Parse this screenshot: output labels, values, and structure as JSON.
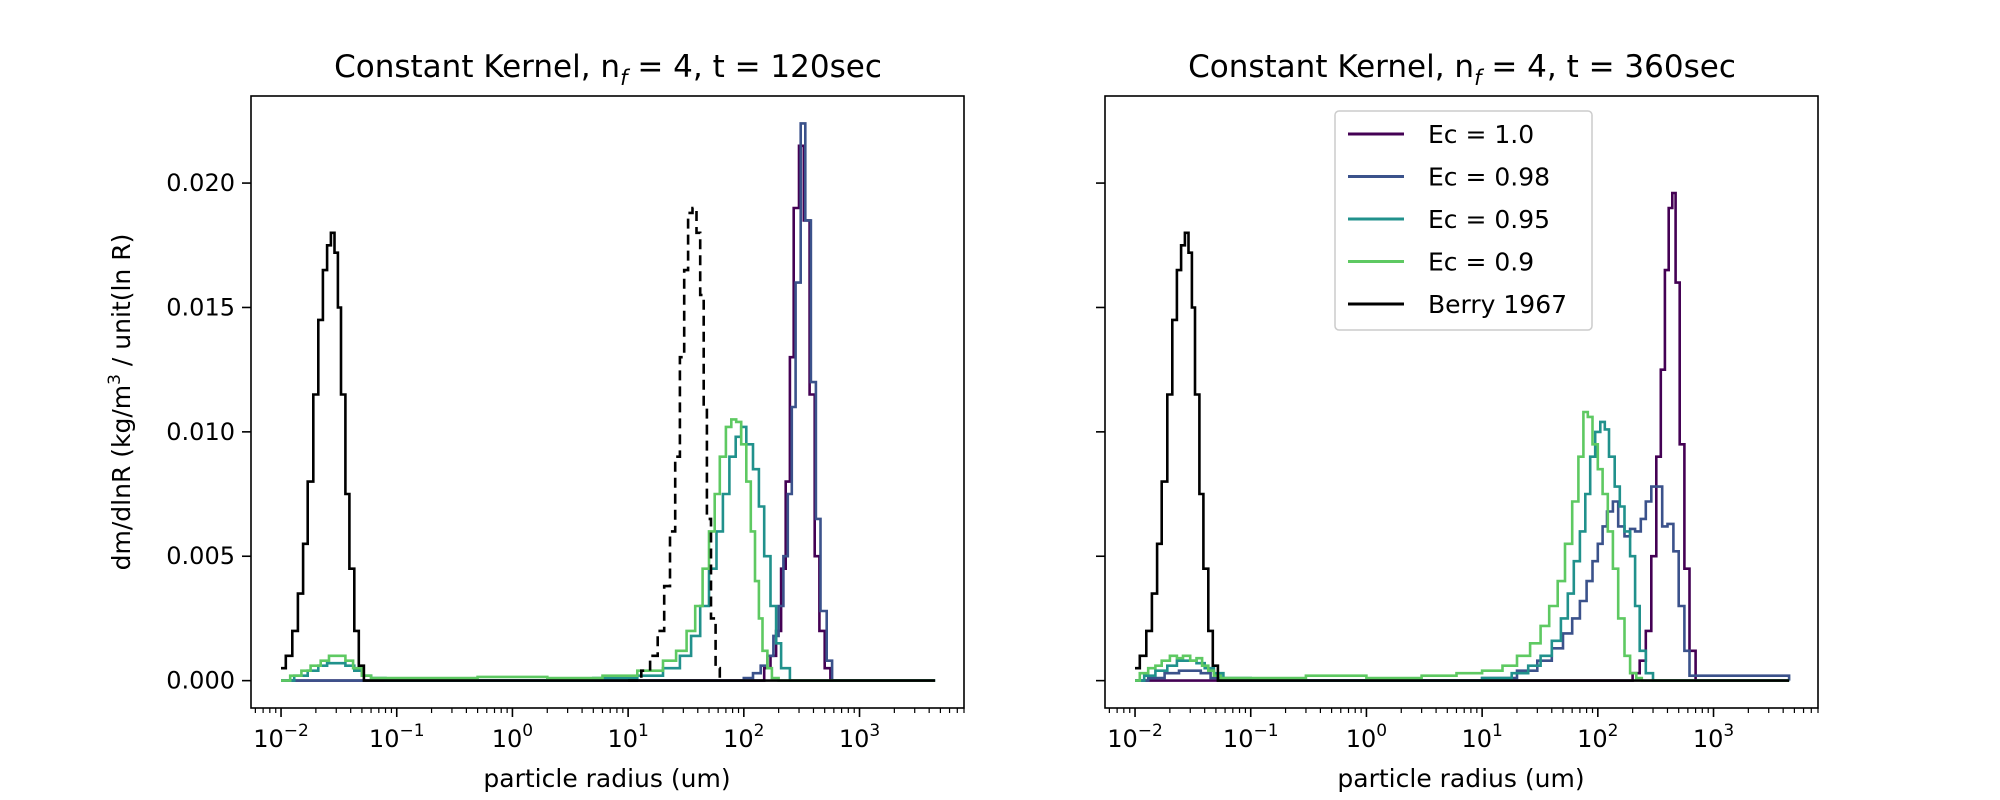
{
  "colors": {
    "ec_1.0": "#440154",
    "ec_0.98": "#3b528b",
    "ec_0.95": "#21918c",
    "ec_0.9": "#5ec962",
    "berry": "#000000"
  },
  "legend": {
    "placement": "upper-center",
    "entries": [
      "Ec = 1.0",
      "Ec = 0.98",
      "Ec = 0.95",
      "Ec = 0.9",
      "Berry 1967"
    ]
  },
  "chart_data": [
    {
      "type": "line",
      "style": "step",
      "title_main": "Constant Kernel, n",
      "title_sub": "f",
      "title_rest": " = 4, t = 120sec",
      "xlabel": "particle radius (um)",
      "ylabel_pre": "dm/dlnR (kg/m",
      "ylabel_sup": "3",
      "ylabel_post": " / unit(ln R)",
      "x_scale": "log",
      "xlim": [
        0.0055,
        8000
      ],
      "ylim": [
        -0.0011,
        0.0235
      ],
      "x_ticks": [
        0.01,
        0.1,
        1,
        10,
        100,
        1000
      ],
      "x_tick_exponents": [
        "−2",
        "−1",
        "0",
        "1",
        "2",
        "3"
      ],
      "y_ticks": [
        0.0,
        0.005,
        0.01,
        0.015,
        0.02
      ],
      "y_tick_labels": [
        "0.000",
        "0.005",
        "0.010",
        "0.015",
        "0.020"
      ],
      "series": [
        {
          "key": "ec_1.0",
          "name": "Ec = 1.0",
          "dash": "solid",
          "x": [
            0.01,
            130,
            150,
            170,
            190,
            210,
            230,
            250,
            270,
            300,
            330,
            370,
            410,
            450,
            500,
            560,
            4500
          ],
          "y": [
            0,
            0,
            0.0005,
            0.001,
            0.002,
            0.0045,
            0.008,
            0.013,
            0.019,
            0.0215,
            0.0185,
            0.0115,
            0.005,
            0.002,
            0.0005,
            0,
            0
          ]
        },
        {
          "key": "ec_0.98",
          "name": "Ec = 0.98",
          "dash": "solid",
          "x": [
            0.01,
            80,
            100,
            120,
            140,
            160,
            180,
            200,
            220,
            240,
            260,
            280,
            310,
            340,
            380,
            420,
            460,
            520,
            580,
            4500
          ],
          "y": [
            0,
            0,
            0.0001,
            0.0003,
            0.0006,
            0.001,
            0.0018,
            0.003,
            0.005,
            0.0075,
            0.011,
            0.016,
            0.0224,
            0.0185,
            0.012,
            0.0065,
            0.0028,
            0.0008,
            0,
            0
          ]
        },
        {
          "key": "ec_0.95",
          "name": "Ec = 0.95",
          "dash": "solid",
          "x": [
            0.01,
            0.013,
            0.017,
            0.021,
            0.025,
            0.03,
            0.036,
            0.043,
            0.05,
            0.06,
            0.08,
            0.5,
            5,
            12,
            20,
            28,
            35,
            42,
            50,
            58,
            66,
            75,
            85,
            95,
            105,
            120,
            135,
            150,
            170,
            190,
            210,
            250,
            4500
          ],
          "y": [
            0,
            0.0002,
            0.0004,
            0.0006,
            0.0007,
            0.0007,
            0.0006,
            0.0004,
            0.0002,
            0.0001,
            0,
            0,
            0.0001,
            0.0002,
            0.0005,
            0.001,
            0.0018,
            0.003,
            0.0045,
            0.006,
            0.0075,
            0.009,
            0.0098,
            0.0102,
            0.0095,
            0.0085,
            0.007,
            0.005,
            0.003,
            0.0015,
            0.0005,
            0,
            0
          ]
        },
        {
          "key": "ec_0.9",
          "name": "Ec = 0.9",
          "dash": "solid",
          "x": [
            0.01,
            0.012,
            0.015,
            0.018,
            0.022,
            0.026,
            0.031,
            0.036,
            0.042,
            0.05,
            0.06,
            0.1,
            0.5,
            2,
            6,
            12,
            20,
            26,
            32,
            38,
            44,
            50,
            56,
            62,
            70,
            78,
            86,
            95,
            105,
            115,
            125,
            135,
            145,
            160,
            175,
            200,
            4500
          ],
          "y": [
            0,
            0.0002,
            0.0004,
            0.0006,
            0.0008,
            0.001,
            0.001,
            0.0008,
            0.0005,
            0.0002,
            0.0001,
            0.0001,
            0.00015,
            0.0001,
            0.0002,
            0.0004,
            0.0008,
            0.0012,
            0.002,
            0.003,
            0.0045,
            0.006,
            0.0075,
            0.009,
            0.0102,
            0.0105,
            0.0104,
            0.0095,
            0.008,
            0.006,
            0.004,
            0.0025,
            0.0012,
            0.0005,
            0.0001,
            0,
            0
          ]
        },
        {
          "key": "berry",
          "name": "Berry 1967",
          "dash": "solid",
          "x": [
            0.01,
            0.011,
            0.0125,
            0.014,
            0.0155,
            0.017,
            0.019,
            0.021,
            0.023,
            0.025,
            0.027,
            0.029,
            0.031,
            0.033,
            0.036,
            0.039,
            0.043,
            0.047,
            0.052,
            4500
          ],
          "y": [
            0.0005,
            0.001,
            0.002,
            0.0035,
            0.0055,
            0.008,
            0.0115,
            0.0145,
            0.0165,
            0.0175,
            0.018,
            0.0172,
            0.015,
            0.0115,
            0.0075,
            0.0045,
            0.002,
            0.0006,
            0,
            0
          ]
        },
        {
          "key": "berry",
          "name": "",
          "dash": "dashed",
          "x": [
            10,
            13,
            15.5,
            18,
            20.5,
            23,
            25.5,
            28,
            30.5,
            33,
            36,
            39,
            42,
            45,
            48,
            52,
            57,
            62
          ],
          "y": [
            0,
            0.0004,
            0.001,
            0.002,
            0.0038,
            0.006,
            0.009,
            0.013,
            0.0165,
            0.0188,
            0.019,
            0.018,
            0.0155,
            0.011,
            0.0065,
            0.0025,
            0.0005,
            0
          ]
        }
      ]
    },
    {
      "type": "line",
      "style": "step",
      "title_main": "Constant Kernel, n",
      "title_sub": "f",
      "title_rest": " = 4, t = 360sec",
      "xlabel": "particle radius (um)",
      "x_scale": "log",
      "xlim": [
        0.0055,
        8000
      ],
      "ylim": [
        -0.0011,
        0.0235
      ],
      "x_ticks": [
        0.01,
        0.1,
        1,
        10,
        100,
        1000
      ],
      "x_tick_exponents": [
        "−2",
        "−1",
        "0",
        "1",
        "2",
        "3"
      ],
      "y_ticks": [
        0.0,
        0.005,
        0.01,
        0.015,
        0.02
      ],
      "series": [
        {
          "key": "ec_1.0",
          "name": "Ec = 1.0",
          "dash": "solid",
          "x": [
            0.01,
            170,
            200,
            230,
            260,
            290,
            320,
            350,
            380,
            410,
            440,
            470,
            510,
            560,
            620,
            700,
            4500
          ],
          "y": [
            0,
            0,
            0.0003,
            0.0008,
            0.002,
            0.005,
            0.009,
            0.0125,
            0.0165,
            0.019,
            0.0196,
            0.016,
            0.0095,
            0.0045,
            0.0012,
            0,
            0
          ]
        },
        {
          "key": "ec_0.98",
          "name": "Ec = 0.98",
          "dash": "solid",
          "x": [
            0.01,
            0.013,
            0.018,
            0.024,
            0.03,
            0.037,
            0.045,
            0.055,
            0.1,
            1,
            10,
            20,
            30,
            40,
            50,
            60,
            70,
            80,
            90,
            100,
            110,
            120,
            135,
            150,
            170,
            190,
            210,
            235,
            260,
            290,
            320,
            360,
            400,
            450,
            500,
            560,
            620,
            4500
          ],
          "y": [
            0,
            0.0001,
            0.0003,
            0.0004,
            0.0004,
            0.0003,
            0.0001,
            0,
            0,
            0,
            0.0001,
            0.0004,
            0.0008,
            0.0013,
            0.0019,
            0.0025,
            0.0032,
            0.004,
            0.0048,
            0.0055,
            0.0062,
            0.0068,
            0.0072,
            0.0062,
            0.0058,
            0.0061,
            0.006,
            0.0065,
            0.0072,
            0.0078,
            0.0078,
            0.0062,
            0.0063,
            0.0052,
            0.003,
            0.0012,
            0.0002,
            0
          ]
        },
        {
          "key": "ec_0.95",
          "name": "Ec = 0.95",
          "dash": "solid",
          "x": [
            0.01,
            0.012,
            0.015,
            0.019,
            0.023,
            0.028,
            0.034,
            0.04,
            0.048,
            0.058,
            0.1,
            1,
            10,
            18,
            25,
            32,
            40,
            48,
            55,
            62,
            70,
            78,
            86,
            95,
            105,
            115,
            125,
            140,
            155,
            170,
            190,
            210,
            230,
            260,
            300,
            4500
          ],
          "y": [
            0,
            0.0002,
            0.0004,
            0.0006,
            0.0008,
            0.0008,
            0.0007,
            0.0005,
            0.0003,
            0.0001,
            0,
            0,
            0.0001,
            0.0003,
            0.0006,
            0.001,
            0.0016,
            0.0025,
            0.0035,
            0.0048,
            0.006,
            0.0075,
            0.009,
            0.01,
            0.0104,
            0.0101,
            0.009,
            0.0078,
            0.007,
            0.006,
            0.005,
            0.003,
            0.0012,
            0.0003,
            0,
            0
          ]
        },
        {
          "key": "ec_0.9",
          "name": "Ec = 0.9",
          "dash": "solid",
          "x": [
            0.01,
            0.011,
            0.013,
            0.015,
            0.017,
            0.02,
            0.023,
            0.026,
            0.03,
            0.034,
            0.038,
            0.043,
            0.048,
            0.055,
            0.07,
            0.1,
            0.3,
            1,
            3,
            6,
            10,
            15,
            20,
            26,
            32,
            38,
            45,
            52,
            60,
            68,
            75,
            82,
            90,
            100,
            110,
            122,
            135,
            150,
            170,
            190,
            215,
            240,
            4500
          ],
          "y": [
            0,
            0.0003,
            0.0005,
            0.0006,
            0.0008,
            0.001,
            0.0009,
            0.001,
            0.0008,
            0.0009,
            0.0006,
            0.0004,
            0.0002,
            0.0001,
            0.0001,
            0.0001,
            0.0002,
            0.0001,
            0.0002,
            0.0003,
            0.0004,
            0.0006,
            0.001,
            0.0015,
            0.0022,
            0.003,
            0.004,
            0.0055,
            0.0072,
            0.009,
            0.0108,
            0.0106,
            0.0095,
            0.0085,
            0.0075,
            0.006,
            0.0045,
            0.0025,
            0.001,
            0.0003,
            0.0001,
            0,
            0
          ]
        },
        {
          "key": "berry",
          "name": "Berry 1967",
          "dash": "solid",
          "x": [
            0.01,
            0.011,
            0.0125,
            0.014,
            0.0155,
            0.017,
            0.019,
            0.021,
            0.023,
            0.025,
            0.027,
            0.029,
            0.031,
            0.033,
            0.036,
            0.039,
            0.043,
            0.047,
            0.052,
            4500
          ],
          "y": [
            0.0005,
            0.001,
            0.002,
            0.0035,
            0.0055,
            0.008,
            0.0115,
            0.0145,
            0.0165,
            0.0175,
            0.018,
            0.0172,
            0.015,
            0.0115,
            0.0075,
            0.0045,
            0.002,
            0.0006,
            0,
            0
          ]
        }
      ]
    }
  ]
}
